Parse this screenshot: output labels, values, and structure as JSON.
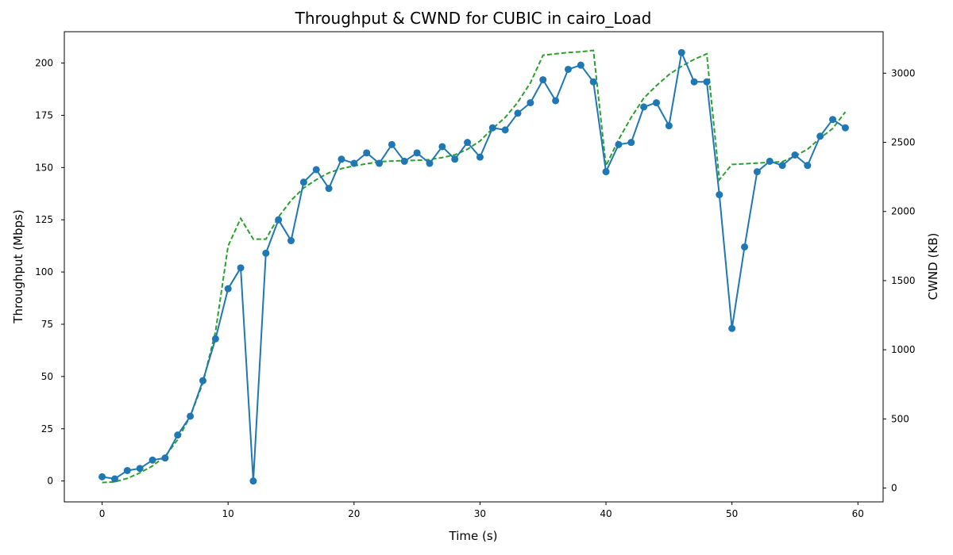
{
  "chart_data": {
    "type": "line",
    "title": "Throughput & CWND for CUBIC in cairo_Load",
    "xlabel": "Time (s)",
    "ylabel_left": "Throughput (Mbps)",
    "ylabel_right": "CWND (KB)",
    "xlim": [
      -3,
      62
    ],
    "ylim_left": [
      -10,
      215
    ],
    "ylim_right": [
      -100,
      3300
    ],
    "x_ticks": [
      0,
      10,
      20,
      30,
      40,
      50,
      60
    ],
    "y_left_ticks": [
      0,
      25,
      50,
      75,
      100,
      125,
      150,
      175,
      200
    ],
    "y_right_ticks": [
      0,
      500,
      1000,
      1500,
      2000,
      2500,
      3000
    ],
    "grid": false,
    "legend": "none",
    "colors": {
      "throughput": "#1f77b4",
      "cwnd": "#2ca02c"
    },
    "series": [
      {
        "axis": "left",
        "style": "solid-with-markers",
        "x": [
          0,
          1,
          2,
          3,
          4,
          5,
          6,
          7,
          8,
          9,
          10,
          11,
          12,
          13,
          14,
          15,
          16,
          17,
          18,
          19,
          20,
          21,
          22,
          23,
          24,
          25,
          26,
          27,
          28,
          29,
          30,
          31,
          32,
          33,
          34,
          35,
          36,
          37,
          38,
          39,
          40,
          41,
          42,
          43,
          44,
          45,
          46,
          47,
          48,
          49,
          50,
          51,
          52,
          53,
          54,
          55,
          56,
          57,
          58,
          59
        ],
        "values": [
          2,
          1,
          5,
          6,
          10,
          11,
          22,
          31,
          48,
          68,
          92,
          102,
          0,
          109,
          125,
          115,
          143,
          149,
          140,
          154,
          152,
          157,
          152,
          161,
          153,
          157,
          152,
          160,
          154,
          162,
          155,
          169,
          168,
          176,
          181,
          192,
          182,
          197,
          199,
          191,
          148,
          161,
          162,
          179,
          181,
          170,
          205,
          191,
          191,
          137,
          73,
          112,
          148,
          153,
          151,
          156,
          151,
          165,
          173,
          169
        ]
      },
      {
        "axis": "right",
        "style": "dashed",
        "x": [
          0,
          1,
          2,
          3,
          4,
          5,
          6,
          7,
          8,
          9,
          10,
          11,
          12,
          13,
          14,
          15,
          16,
          17,
          18,
          19,
          20,
          21,
          22,
          23,
          24,
          25,
          26,
          27,
          28,
          29,
          30,
          31,
          32,
          33,
          34,
          35,
          36,
          37,
          38,
          39,
          40,
          41,
          42,
          43,
          44,
          45,
          46,
          47,
          48,
          49,
          50,
          51,
          52,
          53,
          54,
          55,
          56,
          57,
          58,
          59
        ],
        "values": [
          40,
          45,
          70,
          110,
          160,
          230,
          350,
          520,
          760,
          1130,
          1750,
          1950,
          1800,
          1800,
          1960,
          2080,
          2170,
          2230,
          2280,
          2310,
          2330,
          2345,
          2360,
          2365,
          2368,
          2370,
          2375,
          2390,
          2410,
          2450,
          2510,
          2600,
          2680,
          2790,
          2930,
          3130,
          3140,
          3150,
          3155,
          3165,
          2330,
          2520,
          2680,
          2820,
          2910,
          2990,
          3050,
          3100,
          3140,
          2230,
          2340,
          2345,
          2350,
          2355,
          2360,
          2400,
          2450,
          2530,
          2600,
          2720
        ]
      }
    ]
  }
}
